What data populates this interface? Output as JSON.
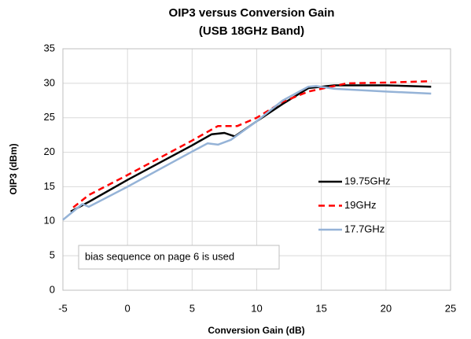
{
  "chart_data": {
    "type": "line",
    "title": "OIP3 versus Conversion Gain",
    "subtitle": "(USB 18GHz Band)",
    "x_label": "Conversion Gain (dB)",
    "y_label": "OIP3 (dBm)",
    "annotation": "bias sequence on page 6 is used",
    "xlim": [
      -5,
      25
    ],
    "xticks": [
      -5,
      0,
      5,
      10,
      15,
      20,
      25
    ],
    "ylim": [
      0,
      35
    ],
    "yticks": [
      0,
      5,
      10,
      15,
      20,
      25,
      30,
      35
    ],
    "grid": true,
    "legend": "right",
    "series": [
      {
        "name": "19.75GHz",
        "color": "#000000",
        "dashed": false,
        "x": [
          -4.4,
          -3,
          0,
          5,
          6.5,
          7.5,
          8.3,
          10,
          12,
          14,
          16,
          20,
          23.5
        ],
        "values": [
          11.4,
          12.8,
          16,
          21,
          22.6,
          22.8,
          22.3,
          24.5,
          27,
          29.3,
          29.7,
          29.7,
          29.5
        ]
      },
      {
        "name": "19GHz",
        "color": "#ff0000",
        "dashed": true,
        "x": [
          -4.2,
          -3,
          0,
          5,
          7,
          8.5,
          10,
          12,
          14,
          15,
          17,
          20,
          23.5
        ],
        "values": [
          12,
          13.8,
          16.7,
          21.7,
          23.8,
          23.8,
          25,
          27.3,
          28.8,
          29.2,
          30,
          30.1,
          30.3
        ]
      },
      {
        "name": "17.7GHz",
        "color": "#95b3d7",
        "dashed": false,
        "x": [
          -5,
          -3.5,
          -3,
          0,
          5,
          6.2,
          7,
          8,
          10,
          12,
          14,
          14.6,
          16,
          20,
          23.5
        ],
        "values": [
          10.2,
          12.5,
          12.1,
          15,
          20.1,
          21.3,
          21.1,
          21.8,
          24.5,
          27.5,
          29.5,
          29.6,
          29.2,
          28.8,
          28.5
        ]
      }
    ]
  }
}
